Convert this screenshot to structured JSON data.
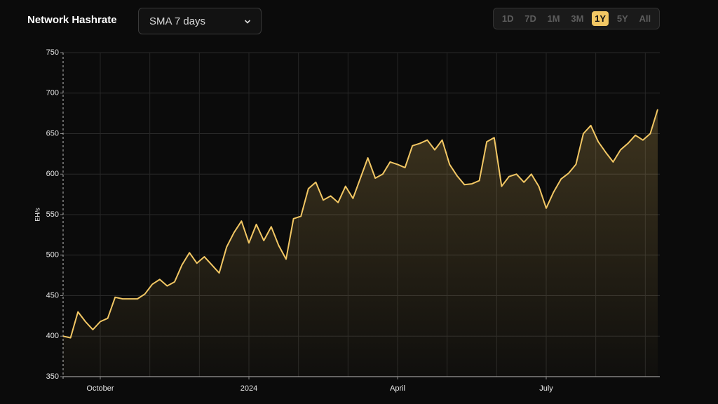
{
  "header": {
    "title": "Network Hashrate",
    "dropdown": "SMA 7 days",
    "ranges": [
      "1D",
      "7D",
      "1M",
      "3M",
      "1Y",
      "5Y",
      "All"
    ],
    "active_range": "1Y"
  },
  "chart_data": {
    "type": "area",
    "y_label": "EH/s",
    "categories": [
      null,
      null,
      null,
      null,
      null,
      "October",
      null,
      null,
      null,
      null,
      null,
      null,
      null,
      null,
      null,
      null,
      null,
      null,
      null,
      null,
      null,
      null,
      null,
      null,
      null,
      "2024",
      null,
      null,
      null,
      null,
      null,
      null,
      null,
      null,
      null,
      null,
      null,
      null,
      null,
      null,
      null,
      null,
      null,
      null,
      null,
      "April",
      null,
      null,
      null,
      null,
      null,
      null,
      null,
      null,
      null,
      null,
      null,
      null,
      null,
      null,
      null,
      null,
      null,
      null,
      null,
      "July",
      null,
      null,
      null,
      null,
      null,
      null,
      null,
      null,
      null,
      null,
      null,
      null,
      null,
      null,
      null
    ],
    "values": [
      400,
      398,
      430,
      418,
      408,
      418,
      422,
      448,
      446,
      446,
      446,
      452,
      464,
      470,
      462,
      467,
      488,
      503,
      490,
      498,
      488,
      478,
      510,
      528,
      542,
      515,
      538,
      518,
      535,
      512,
      495,
      545,
      548,
      582,
      590,
      568,
      573,
      565,
      585,
      570,
      595,
      620,
      595,
      600,
      615,
      612,
      608,
      635,
      638,
      642,
      630,
      642,
      612,
      598,
      587,
      588,
      592,
      640,
      645,
      585,
      597,
      600,
      590,
      600,
      585,
      558,
      578,
      594,
      601,
      612,
      650,
      660,
      640,
      627,
      615,
      630,
      638,
      648,
      642,
      650,
      680
    ],
    "color": "#f2c764",
    "ylim": [
      350,
      750
    ],
    "yticks": [
      350,
      400,
      450,
      500,
      550,
      600,
      650,
      700,
      750
    ],
    "grid": true
  }
}
